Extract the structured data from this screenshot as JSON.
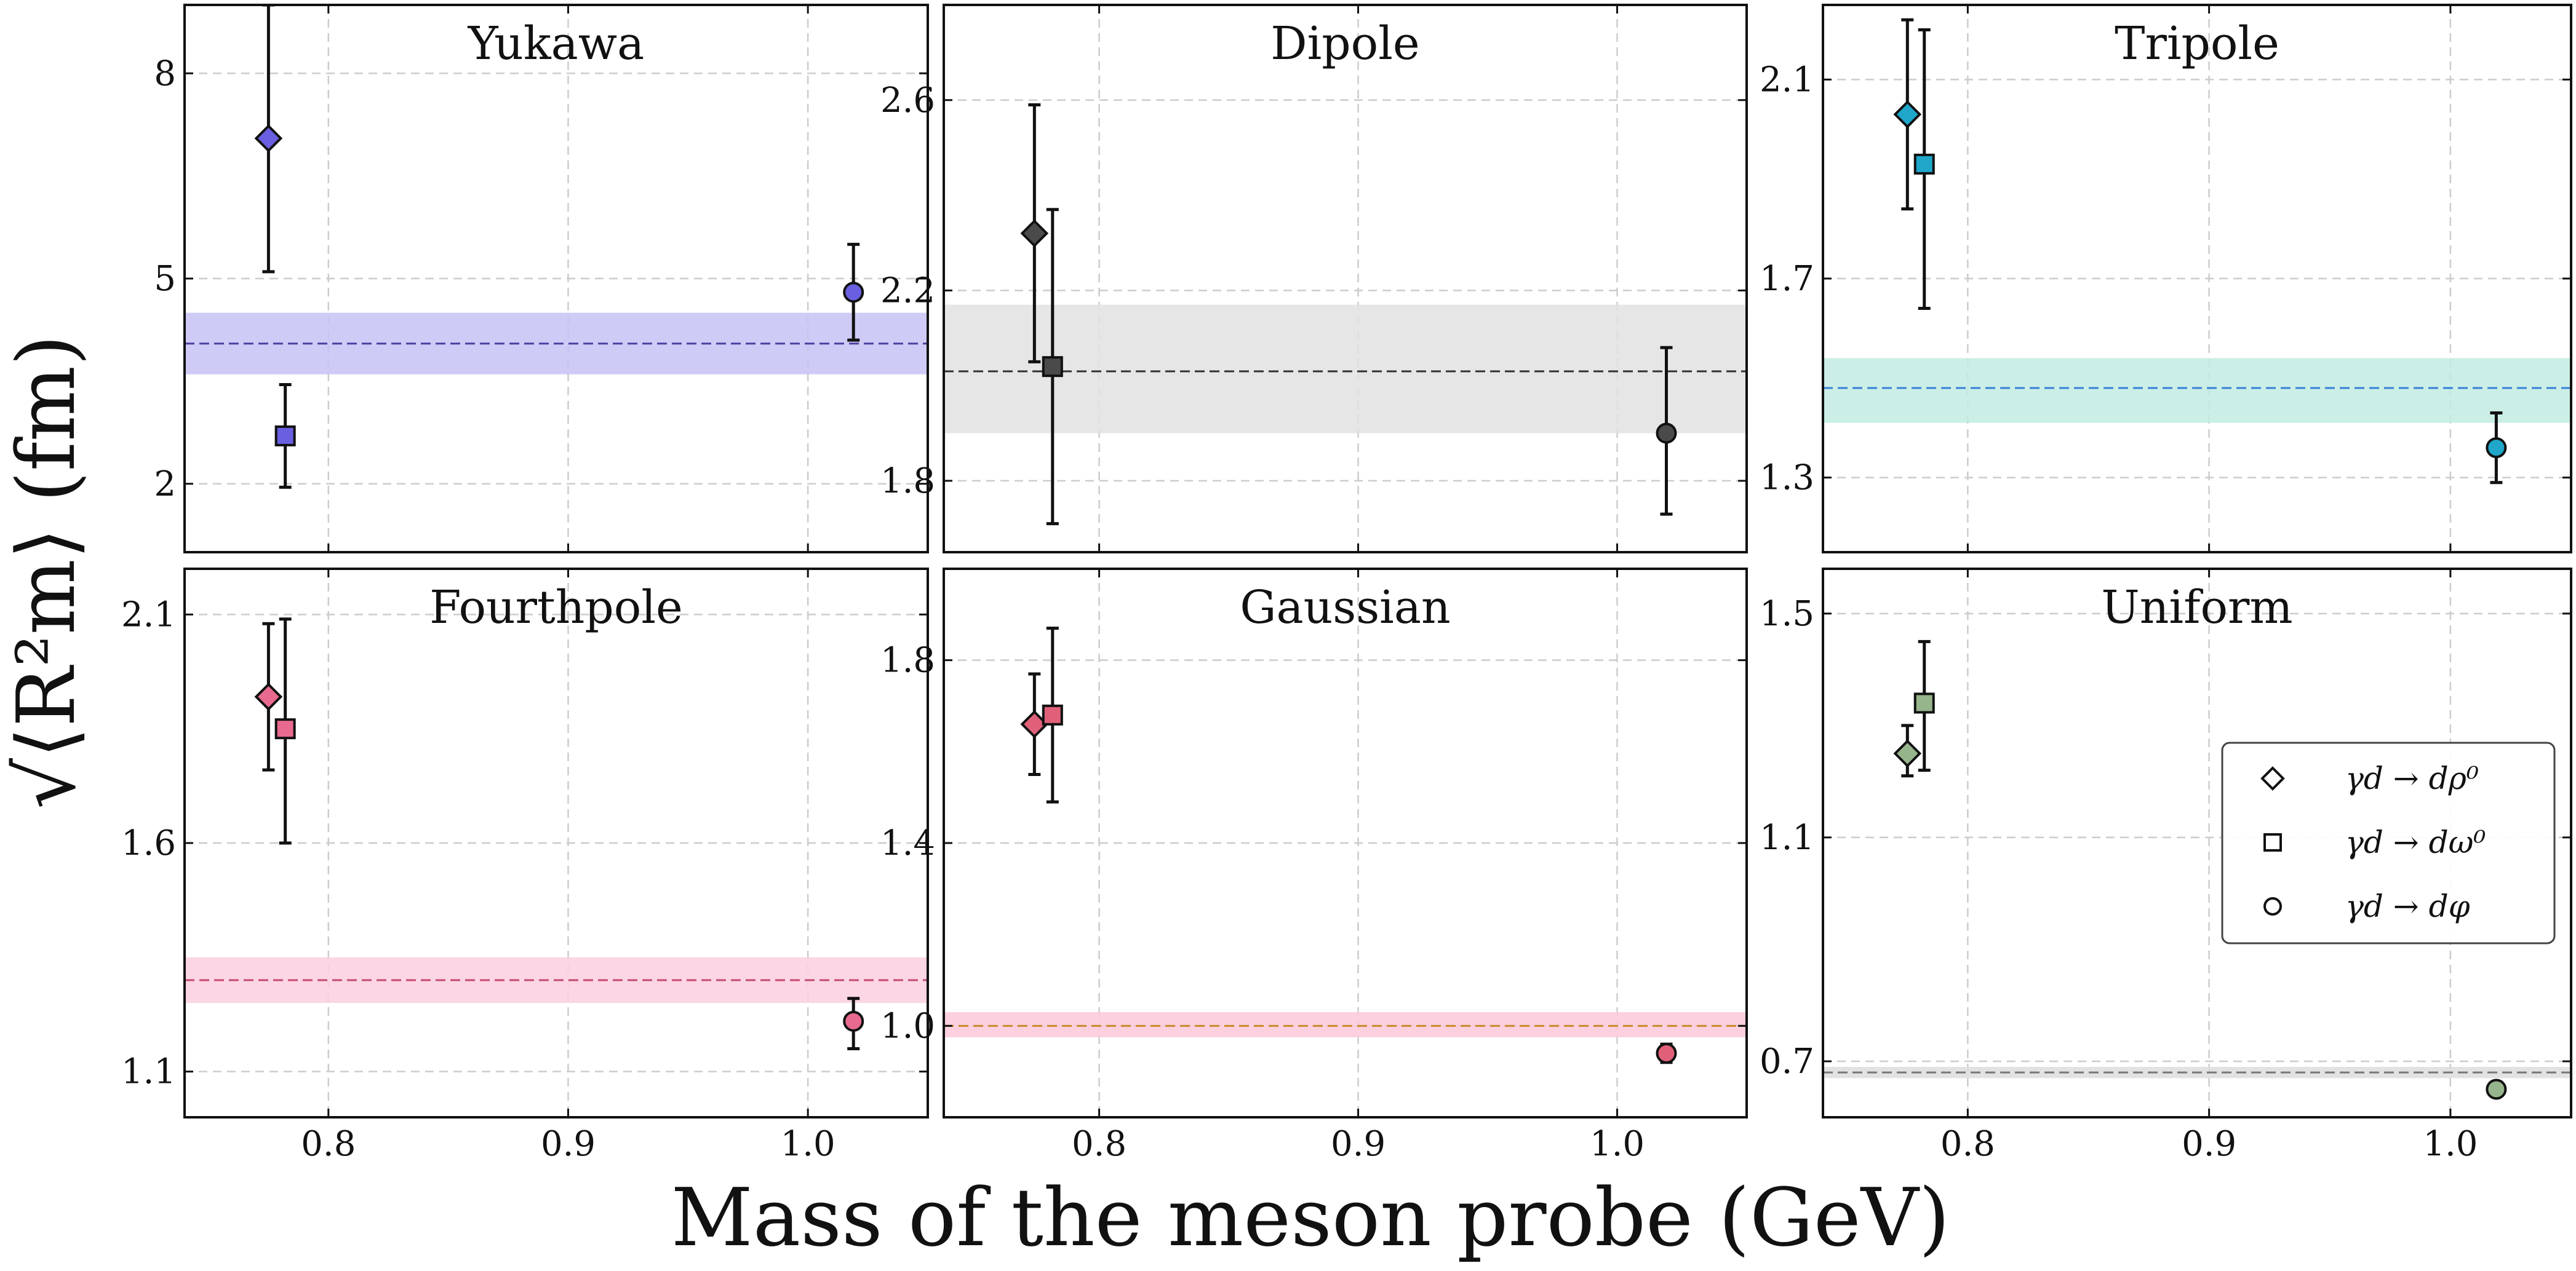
{
  "figure": {
    "xlabel": "Mass of the meson probe (GeV)",
    "ylabel": "√⟨R²m⟩ (fm)"
  },
  "legend": {
    "entries": [
      {
        "marker": "diamond",
        "label": "γd → dρ⁰"
      },
      {
        "marker": "square",
        "label": "γd → dω⁰"
      },
      {
        "marker": "circle",
        "label": "γd → dφ"
      }
    ]
  },
  "chart_data": [
    {
      "type": "scatter",
      "title": "Yukawa",
      "xlim": [
        0.74,
        1.05
      ],
      "ylim": [
        1.0,
        9.0
      ],
      "xticks": [
        0.8,
        0.9,
        1.0
      ],
      "xticklabels": [
        "",
        "",
        ""
      ],
      "yticks": [
        2,
        5,
        8
      ],
      "yticklabels": [
        "2",
        "5",
        "8"
      ],
      "color": "#6a5fe0",
      "band_color": "#c5c3f5",
      "line_color": "#4a3fa0",
      "mean": 4.05,
      "band": [
        3.6,
        4.5
      ],
      "points": [
        {
          "marker": "diamond",
          "x": 0.775,
          "y": 7.05,
          "lo": 5.1,
          "hi": 9.0
        },
        {
          "marker": "square",
          "x": 0.782,
          "y": 2.7,
          "lo": 1.95,
          "hi": 3.45
        },
        {
          "marker": "circle",
          "x": 1.019,
          "y": 4.8,
          "lo": 4.1,
          "hi": 5.5
        }
      ]
    },
    {
      "type": "scatter",
      "title": "Dipole",
      "xlim": [
        0.74,
        1.05
      ],
      "ylim": [
        1.65,
        2.8
      ],
      "xticks": [
        0.8,
        0.9,
        1.0
      ],
      "xticklabels": [
        "",
        "",
        ""
      ],
      "yticks": [
        1.8,
        2.2,
        2.6
      ],
      "yticklabels": [
        "1.8",
        "2.2",
        "2.6"
      ],
      "color": "#4a4a4a",
      "band_color": "#e2e2e2",
      "line_color": "#333333",
      "mean": 2.03,
      "band": [
        1.9,
        2.17
      ],
      "points": [
        {
          "marker": "diamond",
          "x": 0.775,
          "y": 2.32,
          "lo": 2.05,
          "hi": 2.59
        },
        {
          "marker": "square",
          "x": 0.782,
          "y": 2.04,
          "lo": 1.71,
          "hi": 2.37
        },
        {
          "marker": "circle",
          "x": 1.019,
          "y": 1.9,
          "lo": 1.73,
          "hi": 2.08
        }
      ]
    },
    {
      "type": "scatter",
      "title": "Tripole",
      "xlim": [
        0.74,
        1.05
      ],
      "ylim": [
        1.15,
        2.25
      ],
      "xticks": [
        0.8,
        0.9,
        1.0
      ],
      "xticklabels": [
        "",
        "",
        ""
      ],
      "yticks": [
        1.3,
        1.7,
        2.1
      ],
      "yticklabels": [
        "1.3",
        "1.7",
        "2.1"
      ],
      "color": "#1fa6c9",
      "band_color": "#c2ece2",
      "line_color": "#3a7fd8",
      "mean": 1.48,
      "band": [
        1.41,
        1.54
      ],
      "points": [
        {
          "marker": "diamond",
          "x": 0.775,
          "y": 2.03,
          "lo": 1.84,
          "hi": 2.22
        },
        {
          "marker": "square",
          "x": 0.782,
          "y": 1.93,
          "lo": 1.64,
          "hi": 2.2
        },
        {
          "marker": "circle",
          "x": 1.019,
          "y": 1.36,
          "lo": 1.29,
          "hi": 1.43
        }
      ]
    },
    {
      "type": "scatter",
      "title": "Fourthpole",
      "xlim": [
        0.74,
        1.05
      ],
      "ylim": [
        1.0,
        2.2
      ],
      "xticks": [
        0.8,
        0.9,
        1.0
      ],
      "xticklabels": [
        "0.8",
        "0.9",
        "1.0"
      ],
      "yticks": [
        1.1,
        1.6,
        2.1
      ],
      "yticklabels": [
        "1.1",
        "1.6",
        "2.1"
      ],
      "color": "#e86a8f",
      "band_color": "#fccfe0",
      "line_color": "#c44a6f",
      "mean": 1.3,
      "band": [
        1.25,
        1.35
      ],
      "points": [
        {
          "marker": "diamond",
          "x": 0.775,
          "y": 1.92,
          "lo": 1.76,
          "hi": 2.08
        },
        {
          "marker": "square",
          "x": 0.782,
          "y": 1.85,
          "lo": 1.6,
          "hi": 2.09
        },
        {
          "marker": "circle",
          "x": 1.019,
          "y": 1.21,
          "lo": 1.15,
          "hi": 1.26
        }
      ]
    },
    {
      "type": "scatter",
      "title": "Gaussian",
      "xlim": [
        0.74,
        1.05
      ],
      "ylim": [
        0.8,
        2.0
      ],
      "xticks": [
        0.8,
        0.9,
        1.0
      ],
      "xticklabels": [
        "0.8",
        "0.9",
        "1.0"
      ],
      "yticks": [
        1.0,
        1.4,
        1.8
      ],
      "yticklabels": [
        "1.0",
        "1.4",
        "1.8"
      ],
      "color": "#e0607a",
      "band_color": "#fbc8d8",
      "line_color": "#c98a2a",
      "mean": 1.0,
      "band": [
        0.975,
        1.03
      ],
      "points": [
        {
          "marker": "diamond",
          "x": 0.775,
          "y": 1.66,
          "lo": 1.55,
          "hi": 1.77
        },
        {
          "marker": "square",
          "x": 0.782,
          "y": 1.68,
          "lo": 1.49,
          "hi": 1.87
        },
        {
          "marker": "circle",
          "x": 1.019,
          "y": 0.94,
          "lo": 0.92,
          "hi": 0.96
        }
      ]
    },
    {
      "type": "scatter",
      "title": "Uniform",
      "xlim": [
        0.74,
        1.05
      ],
      "ylim": [
        0.6,
        1.58
      ],
      "xticks": [
        0.8,
        0.9,
        1.0
      ],
      "xticklabels": [
        "0.8",
        "0.9",
        "1.0"
      ],
      "yticks": [
        0.7,
        1.1,
        1.5
      ],
      "yticklabels": [
        "0.7",
        "1.1",
        "1.5"
      ],
      "color": "#97b58c",
      "band_color": "#dddddd",
      "line_color": "#777777",
      "mean": 0.68,
      "band": [
        0.67,
        0.69
      ],
      "points": [
        {
          "marker": "diamond",
          "x": 0.775,
          "y": 1.25,
          "lo": 1.21,
          "hi": 1.3
        },
        {
          "marker": "square",
          "x": 0.782,
          "y": 1.34,
          "lo": 1.22,
          "hi": 1.45
        },
        {
          "marker": "circle",
          "x": 1.019,
          "y": 0.65,
          "lo": 0.65,
          "hi": 0.65
        }
      ]
    }
  ]
}
